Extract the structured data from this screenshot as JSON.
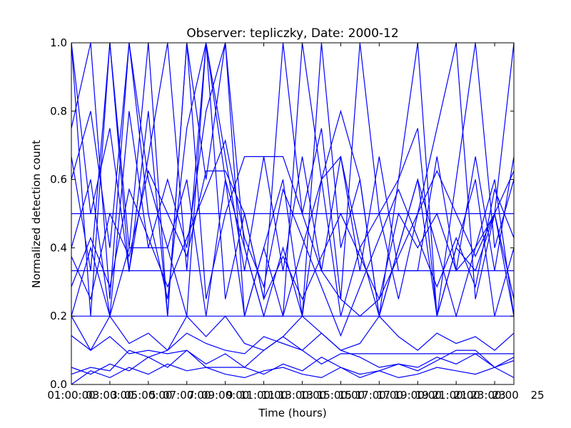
{
  "chart_data": {
    "type": "line",
    "title": "Observer: tepliczky, Date: 2000-12",
    "xlabel": "Time (hours)",
    "ylabel": "Normalized detection count",
    "xlim": [
      1,
      24
    ],
    "ylim": [
      0.0,
      1.0
    ],
    "x_ticks": [
      1,
      3,
      5,
      7,
      9,
      11,
      13,
      15,
      17,
      19,
      21,
      23
    ],
    "x_tick_labels": [
      "01:00:00",
      "03:00:00",
      "05:00:00",
      "07:00:00",
      "09:00:00",
      "11:00:00",
      "13:00:00",
      "15:00:00",
      "17:00:00",
      "19:00:00",
      "21:00:00",
      "23:00:00"
    ],
    "x_tick_labels_offset": [
      "3",
      "5",
      "7",
      "9",
      "11",
      "13",
      "15",
      "17",
      "19",
      "21",
      "23",
      "25"
    ],
    "y_ticks": [
      0.0,
      0.2,
      0.4,
      0.6,
      0.8,
      1.0
    ],
    "y_tick_labels": [
      "0.0",
      "0.2",
      "0.4",
      "0.6",
      "0.8",
      "1.0"
    ],
    "grid": false,
    "line_color": "#0000ff",
    "series": [
      {
        "x": [
          1,
          2,
          3,
          4,
          5,
          6,
          7,
          8,
          9,
          10,
          11,
          12,
          13,
          14,
          15,
          16,
          17,
          18,
          19,
          20,
          21,
          22,
          23,
          24
        ],
        "values": [
          0.5,
          0.5,
          0.5,
          0.5,
          0.5,
          0.5,
          0.5,
          0.5,
          0.5,
          0.5,
          0.5,
          0.5,
          0.5,
          0.5,
          0.5,
          0.5,
          0.5,
          0.5,
          0.5,
          0.5,
          0.5,
          0.5,
          0.5,
          0.5
        ]
      },
      {
        "x": [
          1,
          2,
          3,
          4,
          5,
          6,
          7,
          8,
          9,
          10,
          11,
          12,
          13,
          14,
          15,
          16,
          17,
          18,
          19,
          20,
          21,
          22,
          23,
          24
        ],
        "values": [
          0.333,
          0.333,
          0.333,
          0.333,
          0.333,
          0.333,
          0.333,
          0.333,
          0.333,
          0.333,
          0.333,
          0.333,
          0.333,
          0.333,
          0.333,
          0.333,
          0.333,
          0.333,
          0.333,
          0.333,
          0.333,
          0.333,
          0.333,
          0.333
        ]
      },
      {
        "x": [
          1,
          2,
          3,
          4,
          5,
          6,
          7,
          8,
          9,
          10,
          11,
          12,
          13,
          14,
          15,
          16,
          17,
          18,
          19,
          20,
          21,
          22,
          23,
          24
        ],
        "values": [
          0.2,
          0.2,
          0.2,
          0.2,
          0.2,
          0.2,
          0.2,
          0.2,
          0.2,
          0.2,
          0.2,
          0.2,
          0.2,
          0.2,
          0.2,
          0.2,
          0.2,
          0.2,
          0.2,
          0.2,
          0.2,
          0.2,
          0.2,
          0.2
        ]
      },
      {
        "x": [
          1,
          2,
          3,
          4,
          5,
          6,
          7,
          8,
          9,
          10,
          11,
          12,
          13,
          14,
          15,
          16,
          17,
          18,
          19,
          20,
          21,
          22,
          23,
          24
        ],
        "values": [
          1.0,
          0.2,
          1.0,
          0.4,
          1.0,
          0.2,
          1.0,
          0.6,
          1.0,
          0.2,
          0.4,
          0.6,
          0.2,
          1.0,
          0.4,
          0.6,
          0.2,
          0.6,
          1.0,
          0.2,
          0.6,
          1.0,
          0.4,
          0.6
        ]
      },
      {
        "x": [
          1,
          2,
          3,
          4,
          5,
          6,
          7,
          8,
          9,
          10,
          11,
          12,
          13,
          14,
          15,
          16,
          17,
          18,
          19,
          20,
          21,
          22,
          23,
          24
        ],
        "values": [
          0.75,
          1.0,
          0.25,
          1.0,
          0.5,
          0.25,
          0.75,
          1.0,
          0.25,
          0.5,
          0.25,
          1.0,
          0.5,
          0.75,
          0.25,
          1.0,
          0.5,
          0.25,
          0.5,
          0.75,
          1.0,
          0.25,
          0.5,
          1.0
        ]
      },
      {
        "x": [
          1,
          2,
          3,
          4,
          5,
          6,
          7,
          8,
          9,
          10,
          11,
          12,
          13,
          14,
          15,
          16,
          17,
          18,
          19,
          20,
          21,
          22,
          23,
          24
        ],
        "values": [
          0.667,
          0.333,
          1.0,
          0.333,
          0.667,
          1.0,
          0.333,
          1.0,
          0.667,
          0.333,
          0.667,
          0.333,
          0.667,
          0.333,
          0.667,
          0.333,
          0.667,
          0.333,
          0.333,
          0.667,
          0.333,
          0.667,
          0.333,
          0.667
        ]
      },
      {
        "x": [
          1,
          2,
          3,
          4,
          5,
          6,
          7,
          8,
          9,
          10,
          11,
          12,
          13,
          14,
          15,
          16,
          17,
          18,
          19,
          20,
          21,
          22,
          23,
          24
        ],
        "values": [
          0.4,
          0.6,
          0.2,
          0.8,
          0.4,
          0.6,
          0.4,
          0.8,
          1.0,
          0.4,
          0.2,
          0.4,
          0.2,
          0.6,
          0.2,
          0.4,
          0.2,
          0.4,
          0.6,
          0.4,
          0.2,
          0.4,
          0.6,
          0.2
        ]
      },
      {
        "x": [
          1,
          2,
          3,
          4,
          5,
          6,
          7,
          8,
          9,
          10,
          11,
          12,
          13,
          14,
          15,
          16,
          17,
          18,
          19,
          20,
          21,
          22,
          23,
          24
        ],
        "values": [
          0.286,
          0.429,
          0.286,
          0.571,
          0.429,
          0.286,
          0.429,
          0.571,
          0.714,
          0.429,
          0.286,
          0.571,
          0.429,
          0.286,
          0.143,
          0.286,
          0.429,
          0.571,
          0.429,
          0.286,
          0.429,
          0.286,
          0.571,
          0.429
        ]
      },
      {
        "x": [
          1,
          2,
          3,
          4,
          5,
          6,
          7,
          8,
          9,
          10,
          11,
          12,
          13,
          14,
          15,
          16,
          17,
          18,
          19,
          20,
          21,
          22,
          23,
          24
        ],
        "values": [
          0.375,
          0.25,
          0.5,
          0.375,
          0.625,
          0.5,
          0.375,
          0.625,
          0.625,
          0.5,
          0.25,
          0.375,
          0.25,
          0.375,
          0.5,
          0.375,
          0.25,
          0.375,
          0.5,
          0.625,
          0.5,
          0.375,
          0.5,
          0.625
        ]
      },
      {
        "x": [
          1,
          2,
          3,
          4,
          5,
          6,
          7,
          8,
          9,
          10,
          11,
          12,
          13,
          14,
          15,
          16,
          17,
          18,
          19,
          20,
          21,
          22,
          23,
          24
        ],
        "values": [
          0.143,
          0.1,
          0.2,
          0.12,
          0.15,
          0.1,
          0.2,
          0.14,
          0.2,
          0.12,
          0.1,
          0.14,
          0.2,
          0.15,
          0.1,
          0.12,
          0.2,
          0.14,
          0.1,
          0.15,
          0.12,
          0.14,
          0.1,
          0.15
        ]
      },
      {
        "x": [
          1,
          2,
          3,
          4,
          5,
          6,
          7,
          8,
          9,
          10,
          11,
          12,
          13,
          14,
          15,
          16,
          17,
          18,
          19,
          20,
          21,
          22,
          23,
          24
        ],
        "values": [
          0.05,
          0.03,
          0.06,
          0.04,
          0.08,
          0.05,
          0.1,
          0.06,
          0.09,
          0.05,
          0.03,
          0.06,
          0.04,
          0.08,
          0.05,
          0.02,
          0.04,
          0.06,
          0.05,
          0.08,
          0.06,
          0.09,
          0.05,
          0.07
        ]
      },
      {
        "x": [
          1,
          2,
          3,
          4,
          5,
          6,
          7,
          8,
          9,
          10,
          11,
          12,
          13,
          14,
          15,
          16,
          17,
          18,
          19,
          20,
          21,
          22,
          23,
          24
        ],
        "values": [
          0.03,
          0.05,
          0.04,
          0.1,
          0.08,
          0.1,
          0.15,
          0.12,
          0.1,
          0.09,
          0.14,
          0.12,
          0.1,
          0.15,
          0.1,
          0.08,
          0.05,
          0.06,
          0.04,
          0.07,
          0.1,
          0.1,
          0.05,
          0.08
        ]
      },
      {
        "x": [
          1,
          2,
          3,
          4,
          5,
          6,
          7,
          8,
          9,
          10,
          11,
          12,
          13,
          14,
          15,
          16,
          17,
          18,
          19,
          20,
          21,
          22,
          23,
          24
        ],
        "values": [
          0.0,
          0.04,
          0.02,
          0.05,
          0.03,
          0.06,
          0.04,
          0.05,
          0.03,
          0.02,
          0.04,
          0.05,
          0.03,
          0.02,
          0.05,
          0.03,
          0.04,
          0.02,
          0.03,
          0.05,
          0.04,
          0.03,
          0.05,
          0.02
        ]
      },
      {
        "x": [
          1,
          2,
          3,
          4,
          5,
          6,
          7,
          8,
          9,
          10,
          11,
          12,
          13,
          14,
          15,
          16,
          17,
          18,
          19,
          20,
          21,
          22,
          23,
          24
        ],
        "values": [
          0.2,
          0.1,
          0.14,
          0.09,
          0.1,
          0.09,
          0.1,
          0.05,
          0.05,
          0.05,
          0.1,
          0.14,
          0.1,
          0.06,
          0.09,
          0.09,
          0.09,
          0.09,
          0.09,
          0.09,
          0.09,
          0.09,
          0.09,
          0.09
        ]
      },
      {
        "x": [
          1,
          2,
          3,
          4,
          5,
          6,
          7,
          8,
          9,
          10,
          11,
          12,
          13,
          14,
          15,
          16,
          17,
          18,
          19,
          20,
          21,
          22,
          23,
          24
        ],
        "values": [
          1.0,
          0.5,
          0.75,
          0.33,
          0.8,
          0.2,
          1.0,
          0.25,
          0.5,
          0.667,
          0.667,
          0.667,
          0.5,
          0.333,
          0.25,
          0.2,
          0.25,
          0.5,
          0.4,
          0.5,
          0.333,
          0.4,
          0.5,
          0.25
        ]
      },
      {
        "x": [
          1,
          2,
          3,
          4,
          5,
          6,
          7,
          8,
          9,
          10,
          11,
          12,
          13,
          14,
          15,
          16,
          17,
          18,
          19,
          20,
          21,
          22,
          23,
          24
        ],
        "values": [
          0.6,
          0.8,
          0.4,
          1.0,
          0.6,
          0.4,
          0.2,
          1.0,
          0.6,
          0.2,
          0.4,
          0.2,
          1.0,
          0.6,
          0.8,
          0.6,
          0.2,
          0.4,
          0.6,
          0.2,
          0.4,
          0.6,
          0.2,
          0.4
        ]
      },
      {
        "x": [
          1,
          2,
          3,
          4,
          5,
          6,
          7,
          8,
          9,
          10,
          11,
          12,
          13,
          14,
          15,
          16,
          17,
          18,
          19,
          20,
          21,
          22,
          23,
          24
        ],
        "values": [
          0.2,
          0.4,
          0.2,
          0.4,
          0.4,
          0.4,
          0.6,
          0.2,
          0.6,
          0.4,
          0.2,
          0.2,
          0.4,
          0.6,
          0.667,
          0.4,
          0.5,
          0.6,
          0.75,
          0.2,
          0.4,
          0.333,
          0.5,
          0.2
        ]
      }
    ]
  }
}
